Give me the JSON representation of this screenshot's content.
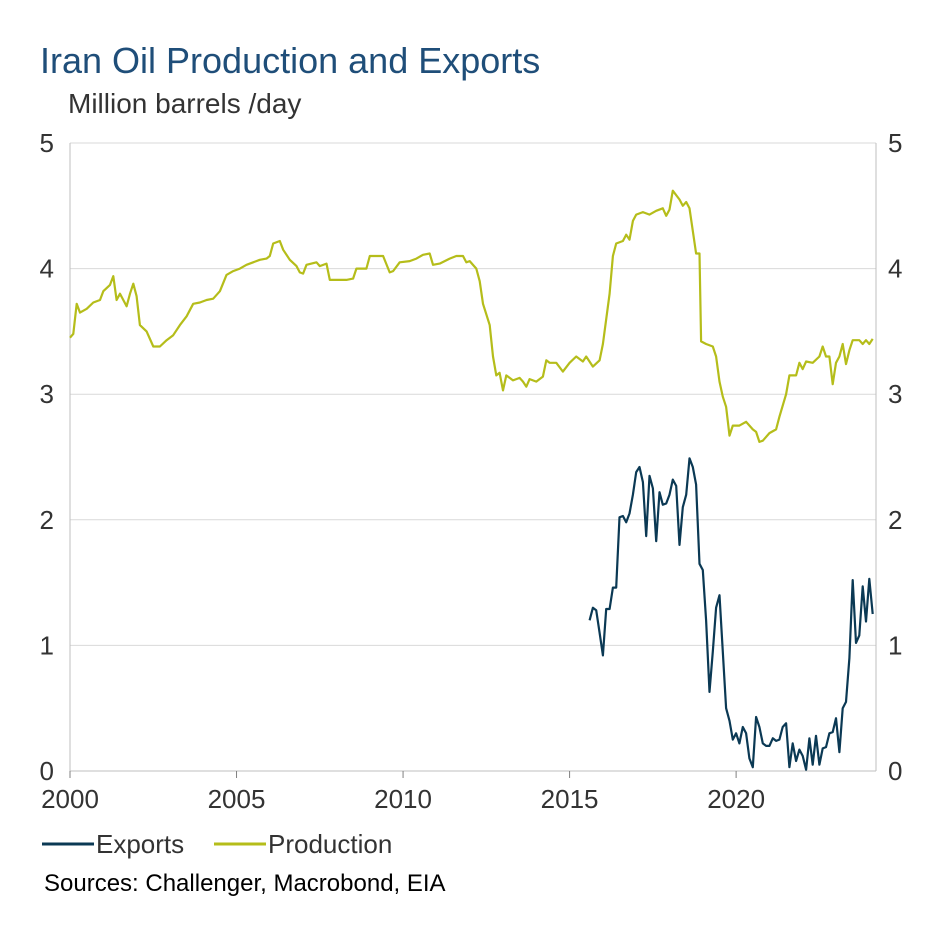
{
  "chart_data": {
    "type": "line",
    "title": "Iran Oil Production and Exports",
    "subtitle": "Million barrels /day",
    "source": "Sources: Challenger, Macrobond, EIA",
    "xlim": [
      2000,
      2024.2
    ],
    "ylim": [
      0,
      5
    ],
    "x_ticks": [
      2000,
      2005,
      2010,
      2015,
      2020
    ],
    "x_tick_labels": [
      "2000",
      "2005",
      "2010",
      "2015",
      "2020"
    ],
    "y_ticks": [
      0,
      1,
      2,
      3,
      4,
      5
    ],
    "y_tick_labels": [
      "0",
      "1",
      "2",
      "3",
      "4",
      "5"
    ],
    "legend": [
      "Exports",
      "Production"
    ],
    "grid": true,
    "series": [
      {
        "name": "Exports",
        "color": "#0b3954",
        "points": [
          [
            2015.6,
            1.2
          ],
          [
            2015.7,
            1.3
          ],
          [
            2015.8,
            1.28
          ],
          [
            2015.9,
            1.1
          ],
          [
            2016.0,
            0.92
          ],
          [
            2016.1,
            1.29
          ],
          [
            2016.2,
            1.29
          ],
          [
            2016.3,
            1.46
          ],
          [
            2016.4,
            1.46
          ],
          [
            2016.5,
            2.02
          ],
          [
            2016.6,
            2.03
          ],
          [
            2016.7,
            1.98
          ],
          [
            2016.8,
            2.05
          ],
          [
            2016.9,
            2.2
          ],
          [
            2017.0,
            2.38
          ],
          [
            2017.1,
            2.42
          ],
          [
            2017.2,
            2.3
          ],
          [
            2017.3,
            1.87
          ],
          [
            2017.4,
            2.35
          ],
          [
            2017.5,
            2.25
          ],
          [
            2017.6,
            1.83
          ],
          [
            2017.7,
            2.22
          ],
          [
            2017.8,
            2.12
          ],
          [
            2017.9,
            2.13
          ],
          [
            2018.0,
            2.2
          ],
          [
            2018.1,
            2.32
          ],
          [
            2018.2,
            2.27
          ],
          [
            2018.3,
            1.8
          ],
          [
            2018.4,
            2.1
          ],
          [
            2018.5,
            2.2
          ],
          [
            2018.6,
            2.49
          ],
          [
            2018.7,
            2.42
          ],
          [
            2018.8,
            2.28
          ],
          [
            2018.9,
            1.65
          ],
          [
            2019.0,
            1.6
          ],
          [
            2019.1,
            1.2
          ],
          [
            2019.2,
            0.63
          ],
          [
            2019.3,
            0.95
          ],
          [
            2019.4,
            1.3
          ],
          [
            2019.5,
            1.4
          ],
          [
            2019.6,
            0.95
          ],
          [
            2019.7,
            0.5
          ],
          [
            2019.8,
            0.4
          ],
          [
            2019.9,
            0.25
          ],
          [
            2020.0,
            0.3
          ],
          [
            2020.1,
            0.22
          ],
          [
            2020.2,
            0.35
          ],
          [
            2020.3,
            0.3
          ],
          [
            2020.4,
            0.1
          ],
          [
            2020.5,
            0.03
          ],
          [
            2020.6,
            0.43
          ],
          [
            2020.7,
            0.35
          ],
          [
            2020.8,
            0.22
          ],
          [
            2020.9,
            0.2
          ],
          [
            2021.0,
            0.2
          ],
          [
            2021.1,
            0.26
          ],
          [
            2021.2,
            0.24
          ],
          [
            2021.3,
            0.25
          ],
          [
            2021.4,
            0.35
          ],
          [
            2021.5,
            0.38
          ],
          [
            2021.6,
            0.03
          ],
          [
            2021.7,
            0.22
          ],
          [
            2021.8,
            0.08
          ],
          [
            2021.9,
            0.17
          ],
          [
            2022.0,
            0.12
          ],
          [
            2022.1,
            0.01
          ],
          [
            2022.2,
            0.26
          ],
          [
            2022.3,
            0.05
          ],
          [
            2022.4,
            0.28
          ],
          [
            2022.5,
            0.05
          ],
          [
            2022.6,
            0.18
          ],
          [
            2022.7,
            0.19
          ],
          [
            2022.8,
            0.3
          ],
          [
            2022.9,
            0.31
          ],
          [
            2023.0,
            0.42
          ],
          [
            2023.1,
            0.15
          ],
          [
            2023.2,
            0.5
          ],
          [
            2023.3,
            0.55
          ],
          [
            2023.4,
            0.9
          ],
          [
            2023.5,
            1.52
          ],
          [
            2023.6,
            1.02
          ],
          [
            2023.7,
            1.08
          ],
          [
            2023.8,
            1.47
          ],
          [
            2023.9,
            1.19
          ],
          [
            2024.0,
            1.53
          ],
          [
            2024.1,
            1.25
          ]
        ]
      },
      {
        "name": "Production",
        "color": "#b5bd1a",
        "points": [
          [
            2000.0,
            3.45
          ],
          [
            2000.1,
            3.48
          ],
          [
            2000.2,
            3.72
          ],
          [
            2000.3,
            3.65
          ],
          [
            2000.5,
            3.68
          ],
          [
            2000.7,
            3.73
          ],
          [
            2000.9,
            3.75
          ],
          [
            2001.0,
            3.82
          ],
          [
            2001.2,
            3.87
          ],
          [
            2001.3,
            3.94
          ],
          [
            2001.4,
            3.75
          ],
          [
            2001.5,
            3.8
          ],
          [
            2001.6,
            3.75
          ],
          [
            2001.7,
            3.7
          ],
          [
            2001.8,
            3.8
          ],
          [
            2001.9,
            3.88
          ],
          [
            2002.0,
            3.78
          ],
          [
            2002.1,
            3.55
          ],
          [
            2002.3,
            3.5
          ],
          [
            2002.5,
            3.38
          ],
          [
            2002.7,
            3.38
          ],
          [
            2002.9,
            3.43
          ],
          [
            2003.1,
            3.47
          ],
          [
            2003.3,
            3.55
          ],
          [
            2003.5,
            3.62
          ],
          [
            2003.7,
            3.72
          ],
          [
            2003.9,
            3.73
          ],
          [
            2004.1,
            3.75
          ],
          [
            2004.3,
            3.76
          ],
          [
            2004.5,
            3.82
          ],
          [
            2004.7,
            3.95
          ],
          [
            2004.9,
            3.98
          ],
          [
            2005.1,
            4.0
          ],
          [
            2005.3,
            4.03
          ],
          [
            2005.5,
            4.05
          ],
          [
            2005.7,
            4.07
          ],
          [
            2005.9,
            4.08
          ],
          [
            2006.0,
            4.1
          ],
          [
            2006.1,
            4.2
          ],
          [
            2006.3,
            4.22
          ],
          [
            2006.4,
            4.15
          ],
          [
            2006.6,
            4.07
          ],
          [
            2006.8,
            4.02
          ],
          [
            2006.9,
            3.97
          ],
          [
            2007.0,
            3.96
          ],
          [
            2007.1,
            4.03
          ],
          [
            2007.4,
            4.05
          ],
          [
            2007.5,
            4.02
          ],
          [
            2007.7,
            4.04
          ],
          [
            2007.8,
            3.91
          ],
          [
            2008.0,
            3.91
          ],
          [
            2008.3,
            3.91
          ],
          [
            2008.5,
            3.92
          ],
          [
            2008.6,
            4.0
          ],
          [
            2008.9,
            4.0
          ],
          [
            2009.0,
            4.1
          ],
          [
            2009.4,
            4.1
          ],
          [
            2009.6,
            3.97
          ],
          [
            2009.7,
            3.98
          ],
          [
            2009.9,
            4.05
          ],
          [
            2010.2,
            4.06
          ],
          [
            2010.4,
            4.08
          ],
          [
            2010.6,
            4.11
          ],
          [
            2010.8,
            4.12
          ],
          [
            2010.9,
            4.03
          ],
          [
            2011.1,
            4.04
          ],
          [
            2011.4,
            4.08
          ],
          [
            2011.6,
            4.1
          ],
          [
            2011.8,
            4.1
          ],
          [
            2011.9,
            4.05
          ],
          [
            2012.0,
            4.06
          ],
          [
            2012.2,
            4.0
          ],
          [
            2012.3,
            3.9
          ],
          [
            2012.4,
            3.72
          ],
          [
            2012.6,
            3.55
          ],
          [
            2012.7,
            3.3
          ],
          [
            2012.8,
            3.15
          ],
          [
            2012.9,
            3.17
          ],
          [
            2013.0,
            3.03
          ],
          [
            2013.1,
            3.15
          ],
          [
            2013.3,
            3.11
          ],
          [
            2013.5,
            3.13
          ],
          [
            2013.6,
            3.1
          ],
          [
            2013.7,
            3.06
          ],
          [
            2013.8,
            3.12
          ],
          [
            2014.0,
            3.1
          ],
          [
            2014.2,
            3.14
          ],
          [
            2014.3,
            3.27
          ],
          [
            2014.4,
            3.25
          ],
          [
            2014.6,
            3.25
          ],
          [
            2014.8,
            3.18
          ],
          [
            2015.0,
            3.25
          ],
          [
            2015.2,
            3.3
          ],
          [
            2015.4,
            3.26
          ],
          [
            2015.5,
            3.3
          ],
          [
            2015.7,
            3.22
          ],
          [
            2015.9,
            3.27
          ],
          [
            2016.0,
            3.4
          ],
          [
            2016.2,
            3.8
          ],
          [
            2016.3,
            4.1
          ],
          [
            2016.4,
            4.2
          ],
          [
            2016.6,
            4.22
          ],
          [
            2016.7,
            4.27
          ],
          [
            2016.8,
            4.23
          ],
          [
            2016.9,
            4.38
          ],
          [
            2017.0,
            4.43
          ],
          [
            2017.2,
            4.45
          ],
          [
            2017.4,
            4.43
          ],
          [
            2017.6,
            4.46
          ],
          [
            2017.8,
            4.48
          ],
          [
            2017.9,
            4.42
          ],
          [
            2018.0,
            4.47
          ],
          [
            2018.1,
            4.62
          ],
          [
            2018.3,
            4.55
          ],
          [
            2018.4,
            4.5
          ],
          [
            2018.5,
            4.53
          ],
          [
            2018.6,
            4.48
          ],
          [
            2018.7,
            4.3
          ],
          [
            2018.8,
            4.12
          ],
          [
            2018.9,
            4.12
          ],
          [
            2018.95,
            3.42
          ],
          [
            2019.1,
            3.4
          ],
          [
            2019.3,
            3.38
          ],
          [
            2019.4,
            3.3
          ],
          [
            2019.5,
            3.1
          ],
          [
            2019.6,
            2.98
          ],
          [
            2019.7,
            2.9
          ],
          [
            2019.8,
            2.67
          ],
          [
            2019.9,
            2.75
          ],
          [
            2020.1,
            2.75
          ],
          [
            2020.3,
            2.78
          ],
          [
            2020.5,
            2.72
          ],
          [
            2020.6,
            2.7
          ],
          [
            2020.7,
            2.62
          ],
          [
            2020.8,
            2.63
          ],
          [
            2021.0,
            2.69
          ],
          [
            2021.2,
            2.72
          ],
          [
            2021.3,
            2.82
          ],
          [
            2021.5,
            3.0
          ],
          [
            2021.6,
            3.15
          ],
          [
            2021.8,
            3.15
          ],
          [
            2021.9,
            3.25
          ],
          [
            2022.0,
            3.2
          ],
          [
            2022.1,
            3.26
          ],
          [
            2022.3,
            3.25
          ],
          [
            2022.5,
            3.3
          ],
          [
            2022.6,
            3.38
          ],
          [
            2022.7,
            3.3
          ],
          [
            2022.8,
            3.3
          ],
          [
            2022.9,
            3.08
          ],
          [
            2023.0,
            3.25
          ],
          [
            2023.1,
            3.3
          ],
          [
            2023.2,
            3.4
          ],
          [
            2023.3,
            3.24
          ],
          [
            2023.4,
            3.35
          ],
          [
            2023.5,
            3.43
          ],
          [
            2023.7,
            3.43
          ],
          [
            2023.8,
            3.4
          ],
          [
            2023.9,
            3.43
          ],
          [
            2024.0,
            3.4
          ],
          [
            2024.1,
            3.44
          ]
        ]
      }
    ]
  }
}
